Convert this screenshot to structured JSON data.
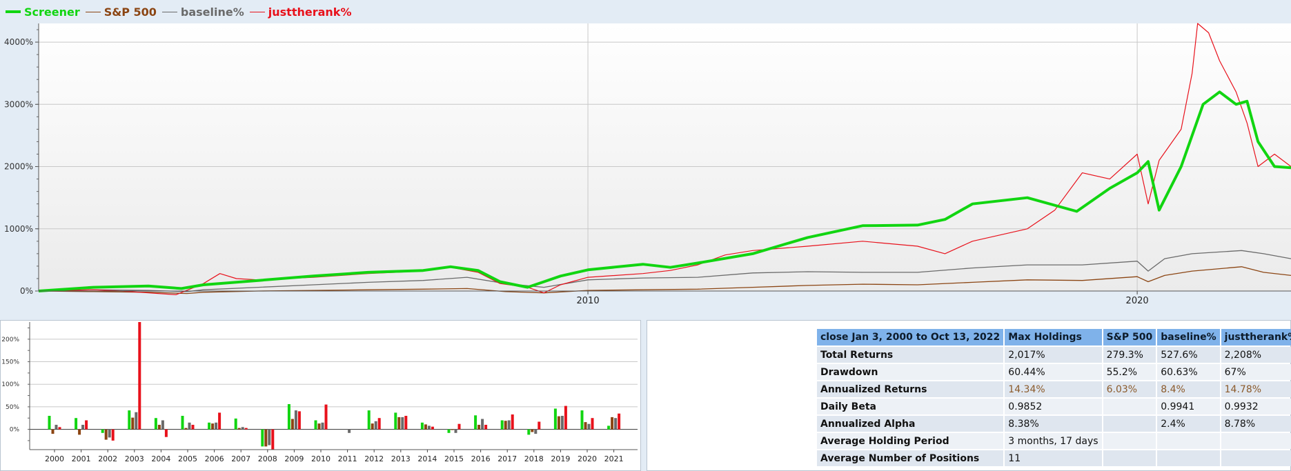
{
  "legend": {
    "items": [
      {
        "label": "Screener",
        "color": "#11d511"
      },
      {
        "label": "S&P 500",
        "color": "#8b4513"
      },
      {
        "label": "baseline%",
        "color": "#6a6a6a"
      },
      {
        "label": "justtherank%",
        "color": "#e8111b"
      }
    ]
  },
  "chart_data": [
    {
      "type": "line",
      "x_ticks": [
        "2010",
        "2020"
      ],
      "y_ticks": [
        "0%",
        "1000%",
        "2000%",
        "3000%",
        "4000%"
      ],
      "ylim": [
        0,
        4300
      ],
      "xlim": [
        2000.0,
        2022.8
      ],
      "grid": true,
      "legend": "top-left",
      "series": [
        {
          "name": "Screener",
          "color": "#11d511",
          "x": [
            2000.0,
            2001.0,
            2002.0,
            2002.6,
            2003.0,
            2004.0,
            2005.0,
            2006.0,
            2007.0,
            2007.5,
            2008.0,
            2008.4,
            2008.9,
            2009.2,
            2009.5,
            2010.0,
            2011.0,
            2011.5,
            2012.0,
            2013.0,
            2014.0,
            2015.0,
            2016.0,
            2016.5,
            2017.0,
            2018.0,
            2018.9,
            2019.5,
            2020.0,
            2020.2,
            2020.4,
            2020.8,
            2021.0,
            2021.2,
            2021.5,
            2021.8,
            2022.0,
            2022.2,
            2022.5,
            2022.8
          ],
          "y": [
            0,
            60,
            80,
            40,
            100,
            170,
            240,
            300,
            330,
            390,
            330,
            150,
            60,
            150,
            240,
            340,
            430,
            380,
            450,
            600,
            860,
            1050,
            1060,
            1150,
            1400,
            1500,
            1280,
            1650,
            1900,
            2080,
            1300,
            2000,
            2500,
            3000,
            3200,
            3000,
            3050,
            2400,
            2000,
            1980
          ]
        },
        {
          "name": "S&P 500",
          "color": "#8b4513",
          "x": [
            2000.0,
            2001.0,
            2002.0,
            2002.7,
            2003.0,
            2004.0,
            2005.0,
            2006.0,
            2007.0,
            2007.8,
            2008.5,
            2009.2,
            2010.0,
            2011.0,
            2012.0,
            2013.0,
            2014.0,
            2015.0,
            2016.0,
            2017.0,
            2018.0,
            2019.0,
            2020.0,
            2020.2,
            2020.5,
            2021.0,
            2021.9,
            2022.3,
            2022.8
          ],
          "y": [
            0,
            -10,
            -20,
            -40,
            -20,
            0,
            10,
            20,
            30,
            40,
            -10,
            -30,
            10,
            20,
            30,
            60,
            90,
            110,
            100,
            140,
            180,
            170,
            230,
            150,
            250,
            320,
            390,
            300,
            250
          ]
        },
        {
          "name": "baseline%",
          "color": "#6a6a6a",
          "x": [
            2000.0,
            2001.0,
            2002.0,
            2002.7,
            2003.0,
            2004.0,
            2005.0,
            2006.0,
            2007.0,
            2007.8,
            2008.5,
            2009.2,
            2010.0,
            2011.0,
            2012.0,
            2013.0,
            2014.0,
            2015.0,
            2016.0,
            2017.0,
            2018.0,
            2019.0,
            2020.0,
            2020.2,
            2020.5,
            2021.0,
            2021.9,
            2022.3,
            2022.8
          ],
          "y": [
            0,
            20,
            10,
            -10,
            20,
            60,
            100,
            140,
            170,
            220,
            120,
            60,
            180,
            210,
            220,
            290,
            310,
            300,
            300,
            370,
            420,
            420,
            480,
            320,
            520,
            600,
            650,
            600,
            520
          ]
        },
        {
          "name": "justtherank%",
          "color": "#e8111b",
          "x": [
            2000.0,
            2001.0,
            2001.5,
            2002.0,
            2002.5,
            2003.0,
            2003.3,
            2003.6,
            2004.0,
            2005.0,
            2006.0,
            2007.0,
            2007.5,
            2008.0,
            2008.4,
            2008.9,
            2009.2,
            2009.5,
            2010.0,
            2011.0,
            2011.5,
            2012.0,
            2012.5,
            2013.0,
            2014.0,
            2015.0,
            2016.0,
            2016.5,
            2017.0,
            2018.0,
            2018.5,
            2019.0,
            2019.5,
            2020.0,
            2020.2,
            2020.4,
            2020.8,
            2021.0,
            2021.1,
            2021.3,
            2021.5,
            2021.8,
            2022.0,
            2022.2,
            2022.5,
            2022.8
          ],
          "y": [
            0,
            20,
            0,
            -30,
            -60,
            120,
            280,
            200,
            180,
            220,
            280,
            320,
            380,
            300,
            120,
            60,
            -30,
            100,
            220,
            280,
            330,
            420,
            580,
            650,
            720,
            800,
            720,
            600,
            800,
            1000,
            1300,
            1900,
            1800,
            2200,
            1400,
            2100,
            2600,
            3500,
            4300,
            4150,
            3700,
            3200,
            2700,
            2000,
            2200,
            2000
          ]
        }
      ]
    },
    {
      "type": "bar",
      "categories": [
        "2000",
        "2001",
        "2002",
        "2003",
        "2004",
        "2005",
        "2006",
        "2007",
        "2008",
        "2009",
        "2010",
        "2011",
        "2012",
        "2013",
        "2014",
        "2015",
        "2016",
        "2017",
        "2018",
        "2019",
        "2020",
        "2021"
      ],
      "y_ticks": [
        "200%",
        "150%",
        "100%",
        "50%",
        "0%"
      ],
      "ylim": [
        -45,
        238
      ],
      "grid": true,
      "series": [
        {
          "name": "Screener",
          "color": "#11d511",
          "values": [
            30,
            25,
            -8,
            42,
            25,
            30,
            15,
            24,
            -38,
            56,
            20,
            0,
            42,
            37,
            15,
            -8,
            31,
            20,
            -12,
            46,
            42,
            8
          ]
        },
        {
          "name": "S&P 500",
          "color": "#8b4513",
          "values": [
            -10,
            -12,
            -23,
            26,
            10,
            3,
            13,
            3,
            -38,
            23,
            13,
            0,
            13,
            27,
            11,
            -1,
            10,
            19,
            -6,
            29,
            16,
            27
          ]
        },
        {
          "name": "baseline%",
          "color": "#6a6a6a",
          "values": [
            10,
            10,
            -18,
            38,
            20,
            15,
            15,
            5,
            -35,
            42,
            15,
            -8,
            18,
            27,
            8,
            -8,
            23,
            20,
            -10,
            30,
            12,
            25
          ]
        },
        {
          "name": "justtherank%",
          "color": "#e8111b",
          "values": [
            5,
            20,
            -25,
            238,
            -17,
            10,
            37,
            3,
            -45,
            40,
            55,
            0,
            25,
            30,
            6,
            12,
            10,
            33,
            17,
            52,
            25,
            35
          ]
        }
      ]
    }
  ],
  "stats": {
    "headers": [
      "close Jan 3, 2000 to Oct 13, 2022",
      "Max Holdings",
      "S&P 500",
      "baseline%",
      "justtherank%"
    ],
    "rows": [
      {
        "label": "Total Returns",
        "values": [
          "2,017%",
          "279.3%",
          "527.6%",
          "2,208%"
        ]
      },
      {
        "label": "Drawdown",
        "values": [
          "60.44%",
          "55.2%",
          "60.63%",
          "67%"
        ]
      },
      {
        "label": "Annualized Returns",
        "values": [
          "14.34%",
          "6.03%",
          "8.4%",
          "14.78%"
        ]
      },
      {
        "label": "Daily Beta",
        "values": [
          "0.9852",
          "",
          "0.9941",
          "0.9932"
        ]
      },
      {
        "label": "Annualized Alpha",
        "values": [
          "8.38%",
          "",
          "2.4%",
          "8.78%"
        ]
      },
      {
        "label": "Average Holding Period",
        "values": [
          "3 months, 17 days",
          "",
          "",
          ""
        ]
      },
      {
        "label": "Average Number of Positions",
        "values": [
          "11",
          "",
          "",
          ""
        ]
      }
    ]
  }
}
